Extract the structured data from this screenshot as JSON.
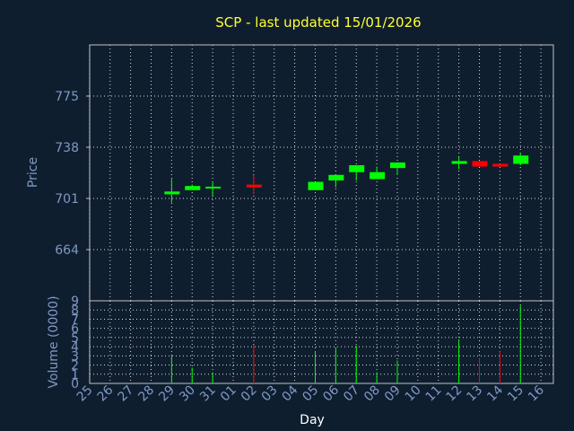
{
  "title": "SCP - last updated 15/01/2026",
  "chart_data": [
    {
      "type": "candlestick",
      "ylabel": "Price",
      "xlabel": "",
      "ylim": [
        627,
        812
      ],
      "yticks": [
        664,
        701,
        738,
        775
      ],
      "grid": true,
      "colors": {
        "up": "#00ff00",
        "down": "#ff0000"
      },
      "categories": [
        "25",
        "26",
        "27",
        "28",
        "29",
        "30",
        "31",
        "01",
        "02",
        "03",
        "04",
        "05",
        "06",
        "07",
        "08",
        "09",
        "10",
        "11",
        "12",
        "13",
        "14",
        "15",
        "16"
      ],
      "candles": [
        {
          "day": "29",
          "open": 704,
          "close": 706,
          "high": 715,
          "low": 698
        },
        {
          "day": "30",
          "open": 707,
          "close": 710,
          "high": 711,
          "low": 707
        },
        {
          "day": "31",
          "open": 709,
          "close": 709.5,
          "high": 713,
          "low": 703
        },
        {
          "day": "02",
          "open": 711,
          "close": 709,
          "high": 718,
          "low": 704
        },
        {
          "day": "05",
          "open": 707,
          "close": 713,
          "high": 713,
          "low": 707
        },
        {
          "day": "06",
          "open": 714,
          "close": 718,
          "high": 718,
          "low": 709
        },
        {
          "day": "07",
          "open": 720,
          "close": 725,
          "high": 725,
          "low": 714
        },
        {
          "day": "08",
          "open": 715,
          "close": 720,
          "high": 724,
          "low": 715
        },
        {
          "day": "09",
          "open": 723,
          "close": 727,
          "high": 727,
          "low": 718
        },
        {
          "day": "12",
          "open": 726,
          "close": 728,
          "high": 731,
          "low": 722
        },
        {
          "day": "13",
          "open": 728,
          "close": 724,
          "high": 728,
          "low": 724
        },
        {
          "day": "14",
          "open": 726,
          "close": 724,
          "high": 726,
          "low": 724
        },
        {
          "day": "15",
          "open": 726,
          "close": 732,
          "high": 734,
          "low": 725
        }
      ]
    },
    {
      "type": "bar",
      "ylabel": "Volume (0000)",
      "xlabel": "Day",
      "ylim": [
        0,
        9
      ],
      "yticks": [
        0,
        1,
        2,
        3,
        4,
        5,
        6,
        7,
        8,
        9
      ],
      "grid": true,
      "categories": [
        "25",
        "26",
        "27",
        "28",
        "29",
        "30",
        "31",
        "01",
        "02",
        "03",
        "04",
        "05",
        "06",
        "07",
        "08",
        "09",
        "10",
        "11",
        "12",
        "13",
        "14",
        "15",
        "16"
      ],
      "bars": [
        {
          "day": "29",
          "value": 3,
          "direction": "up"
        },
        {
          "day": "30",
          "value": 1.7,
          "direction": "up"
        },
        {
          "day": "31",
          "value": 1.2,
          "direction": "up"
        },
        {
          "day": "02",
          "value": 4.2,
          "direction": "down"
        },
        {
          "day": "05",
          "value": 3.5,
          "direction": "up"
        },
        {
          "day": "06",
          "value": 3.8,
          "direction": "up"
        },
        {
          "day": "07",
          "value": 4.1,
          "direction": "up"
        },
        {
          "day": "08",
          "value": 1.2,
          "direction": "up"
        },
        {
          "day": "09",
          "value": 2.5,
          "direction": "up"
        },
        {
          "day": "12",
          "value": 4.8,
          "direction": "up"
        },
        {
          "day": "13",
          "value": 2.8,
          "direction": "down"
        },
        {
          "day": "14",
          "value": 3.5,
          "direction": "down"
        },
        {
          "day": "15",
          "value": 8.5,
          "direction": "up"
        }
      ]
    }
  ]
}
